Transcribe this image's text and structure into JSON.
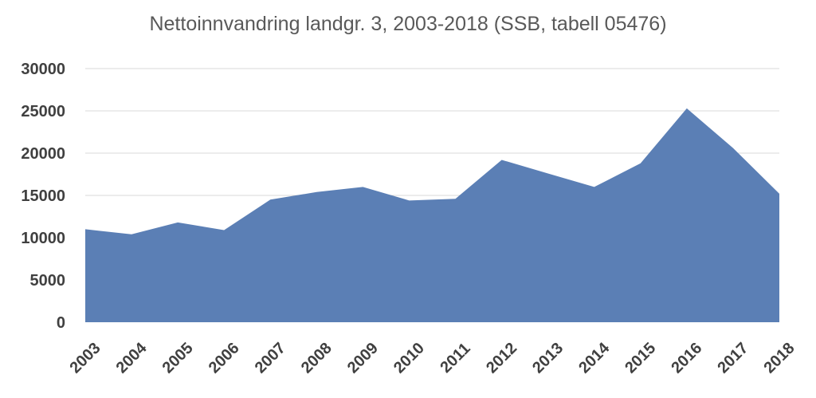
{
  "chart_data": {
    "type": "area",
    "title": "Nettoinnvandring landgr. 3, 2003-2018 (SSB, tabell 05476)",
    "xlabel": "",
    "ylabel": "",
    "categories": [
      "2003",
      "2004",
      "2005",
      "2006",
      "2007",
      "2008",
      "2009",
      "2010",
      "2011",
      "2012",
      "2013",
      "2014",
      "2015",
      "2016",
      "2017",
      "2018"
    ],
    "series": [
      {
        "values": [
          11000,
          10400,
          11800,
          10900,
          14500,
          15400,
          16000,
          14400,
          14600,
          19200,
          17600,
          16000,
          18800,
          25300,
          20600,
          15200
        ]
      }
    ],
    "ylim": [
      0,
      30000
    ],
    "yticks": [
      "0",
      "5000",
      "10000",
      "15000",
      "20000",
      "25000",
      "30000"
    ],
    "grid": true,
    "legend": "none",
    "colors": {
      "area": "#5b7fb5",
      "grid": "#d9d9d9",
      "text": "#404040",
      "title": "#595959"
    }
  }
}
